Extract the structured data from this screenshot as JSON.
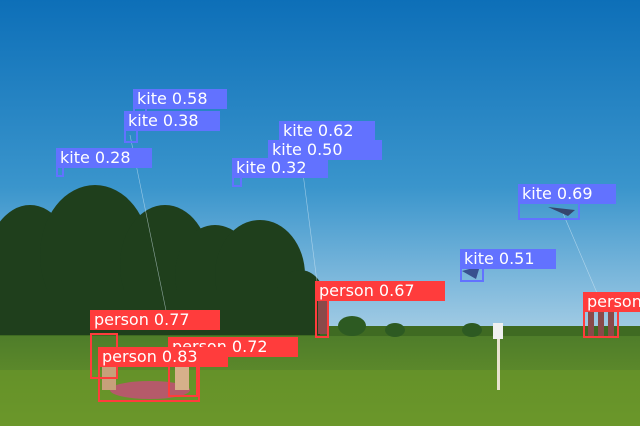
{
  "scene": {
    "description_colors": {
      "sky_top": "#0d6fb8",
      "sky_bottom": "#a9cfe6",
      "grass_far": "#4f7d2a",
      "grass_near": "#6f9a2c",
      "trees": "#1f3f1c"
    }
  },
  "colors": {
    "kite": "#6272ff",
    "person": "#ff3c3c"
  },
  "detections": [
    {
      "cls": "kite",
      "text": "kite 0.58"
    },
    {
      "cls": "kite",
      "text": "kite 0.38"
    },
    {
      "cls": "kite",
      "text": "kite 0.28"
    },
    {
      "cls": "kite",
      "text": "kite 0.62"
    },
    {
      "cls": "kite",
      "text": "kite 0.50"
    },
    {
      "cls": "kite",
      "text": "kite 0.32"
    },
    {
      "cls": "kite",
      "text": "kite 0.69"
    },
    {
      "cls": "kite",
      "text": "kite 0.51"
    },
    {
      "cls": "person",
      "text": "person 0.67"
    },
    {
      "cls": "person",
      "text": "person 0.77"
    },
    {
      "cls": "person",
      "text": "person 0.72"
    },
    {
      "cls": "person",
      "text": "person 0.83"
    },
    {
      "cls": "person",
      "text": "person"
    }
  ]
}
